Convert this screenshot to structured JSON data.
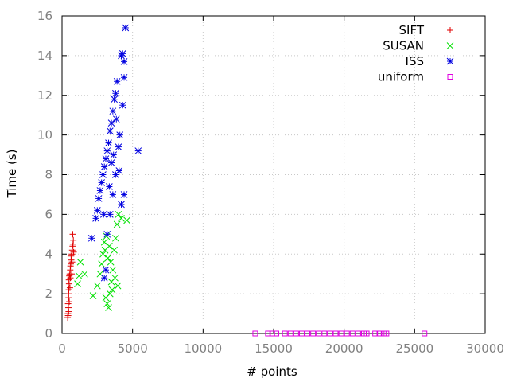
{
  "chart_data": {
    "type": "scatter",
    "title": "",
    "xlabel": "# points",
    "ylabel": "Time (s)",
    "xlim": [
      0,
      30000
    ],
    "ylim": [
      0,
      16
    ],
    "x_ticks": [
      0,
      5000,
      10000,
      15000,
      20000,
      25000,
      30000
    ],
    "y_ticks": [
      0,
      2,
      4,
      6,
      8,
      10,
      12,
      14,
      16
    ],
    "grid": true,
    "legend_position": "top-right",
    "series": [
      {
        "name": "SIFT",
        "marker": "plus",
        "color": "#e00000",
        "points": [
          [
            400,
            0.8
          ],
          [
            420,
            1.0
          ],
          [
            450,
            1.3
          ],
          [
            430,
            1.5
          ],
          [
            460,
            1.8
          ],
          [
            470,
            2.0
          ],
          [
            480,
            2.2
          ],
          [
            500,
            2.5
          ],
          [
            490,
            2.7
          ],
          [
            520,
            2.9
          ],
          [
            550,
            3.0
          ],
          [
            580,
            3.2
          ],
          [
            600,
            3.4
          ],
          [
            620,
            3.5
          ],
          [
            650,
            3.7
          ],
          [
            640,
            3.9
          ],
          [
            700,
            4.0
          ],
          [
            720,
            4.2
          ],
          [
            750,
            4.4
          ],
          [
            780,
            4.5
          ],
          [
            800,
            4.7
          ],
          [
            760,
            5.0
          ],
          [
            680,
            3.0
          ],
          [
            560,
            2.3
          ],
          [
            470,
            1.1
          ],
          [
            510,
            1.6
          ],
          [
            590,
            2.8
          ],
          [
            710,
            3.6
          ],
          [
            820,
            4.1
          ],
          [
            430,
            0.9
          ]
        ]
      },
      {
        "name": "SUSAN",
        "marker": "x",
        "color": "#00e000",
        "points": [
          [
            1100,
            2.5
          ],
          [
            1200,
            2.9
          ],
          [
            1300,
            3.6
          ],
          [
            1600,
            3.0
          ],
          [
            2200,
            1.9
          ],
          [
            2500,
            2.4
          ],
          [
            2700,
            3.0
          ],
          [
            2800,
            3.5
          ],
          [
            2900,
            4.0
          ],
          [
            3000,
            4.6
          ],
          [
            3100,
            1.8
          ],
          [
            3200,
            1.5
          ],
          [
            3300,
            1.3
          ],
          [
            3400,
            2.0
          ],
          [
            3500,
            2.6
          ],
          [
            3600,
            3.2
          ],
          [
            3700,
            4.2
          ],
          [
            3800,
            4.8
          ],
          [
            3900,
            5.5
          ],
          [
            4000,
            6.0
          ],
          [
            4200,
            5.8
          ],
          [
            4600,
            5.7
          ],
          [
            3050,
            4.2
          ],
          [
            3250,
            3.8
          ],
          [
            3350,
            4.4
          ],
          [
            3450,
            3.6
          ],
          [
            3550,
            2.2
          ],
          [
            3750,
            2.8
          ],
          [
            3950,
            2.4
          ],
          [
            3150,
            4.9
          ]
        ]
      },
      {
        "name": "ISS",
        "marker": "star",
        "color": "#0000e0",
        "points": [
          [
            2100,
            4.8
          ],
          [
            2400,
            5.8
          ],
          [
            2500,
            6.2
          ],
          [
            2600,
            6.8
          ],
          [
            2700,
            7.2
          ],
          [
            2800,
            7.6
          ],
          [
            2900,
            8.0
          ],
          [
            3000,
            8.4
          ],
          [
            3100,
            8.8
          ],
          [
            3200,
            9.2
          ],
          [
            3300,
            9.6
          ],
          [
            3400,
            10.2
          ],
          [
            3500,
            10.6
          ],
          [
            3600,
            11.2
          ],
          [
            3700,
            11.8
          ],
          [
            3800,
            12.1
          ],
          [
            3900,
            12.7
          ],
          [
            4200,
            14.0
          ],
          [
            4300,
            14.1
          ],
          [
            4400,
            12.9
          ],
          [
            4500,
            15.4
          ],
          [
            4400,
            13.7
          ],
          [
            4300,
            11.5
          ],
          [
            4100,
            10.0
          ],
          [
            4000,
            9.4
          ],
          [
            3800,
            8.0
          ],
          [
            3600,
            7.0
          ],
          [
            3400,
            6.0
          ],
          [
            3200,
            5.0
          ],
          [
            3000,
            2.8
          ],
          [
            3100,
            3.2
          ],
          [
            4200,
            6.5
          ],
          [
            4400,
            7.0
          ],
          [
            5400,
            9.2
          ],
          [
            3500,
            8.6
          ],
          [
            2950,
            6.0
          ],
          [
            3650,
            9.0
          ],
          [
            3850,
            10.8
          ],
          [
            4050,
            8.2
          ],
          [
            3350,
            7.4
          ]
        ]
      },
      {
        "name": "uniform",
        "marker": "square",
        "color": "#e000e0",
        "points": [
          [
            13700,
            0
          ],
          [
            14600,
            0
          ],
          [
            14900,
            0
          ],
          [
            15200,
            0
          ],
          [
            15800,
            0
          ],
          [
            16200,
            0
          ],
          [
            16600,
            0
          ],
          [
            17000,
            0
          ],
          [
            17400,
            0
          ],
          [
            17800,
            0
          ],
          [
            18200,
            0
          ],
          [
            18600,
            0
          ],
          [
            19000,
            0
          ],
          [
            19400,
            0
          ],
          [
            19800,
            0
          ],
          [
            20200,
            0
          ],
          [
            20600,
            0
          ],
          [
            21000,
            0
          ],
          [
            21400,
            0
          ],
          [
            21600,
            0
          ],
          [
            22200,
            0
          ],
          [
            22500,
            0
          ],
          [
            22800,
            0
          ],
          [
            23000,
            0
          ],
          [
            25700,
            0
          ]
        ]
      }
    ]
  }
}
